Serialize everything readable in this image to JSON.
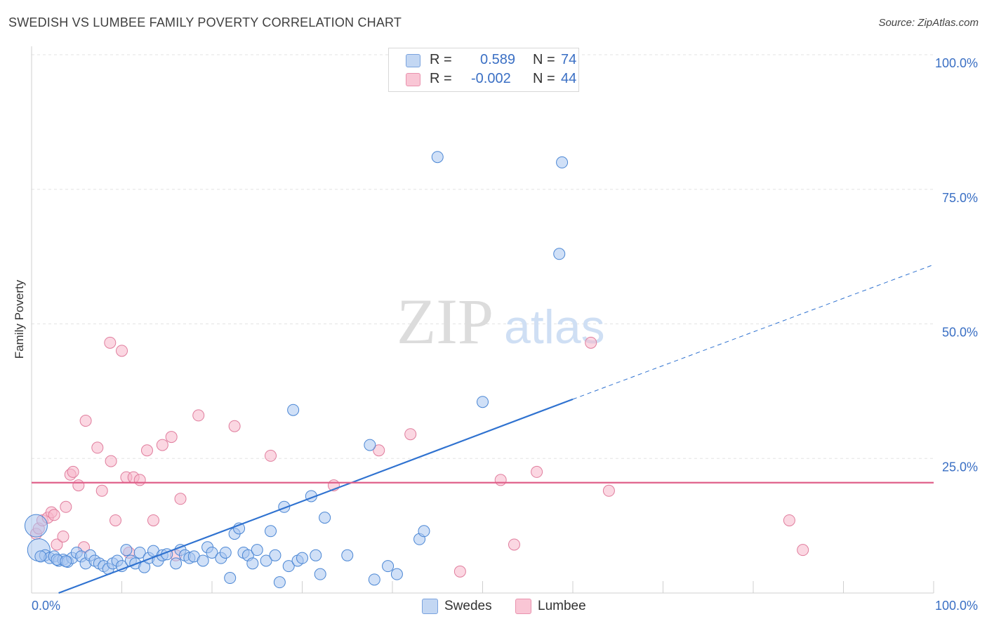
{
  "header": {
    "title": "SWEDISH VS LUMBEE FAMILY POVERTY CORRELATION CHART",
    "source": "Source: ZipAtlas.com"
  },
  "watermark": {
    "zip": "ZIP",
    "atlas": "atlas"
  },
  "legend": {
    "r_label": "R =",
    "n_label": "N =",
    "swedes": {
      "r": "0.589",
      "n": "74",
      "color": "#a9c6f0"
    },
    "lumbee": {
      "r": "-0.002",
      "n": "44",
      "color": "#f7b6cb"
    }
  },
  "bottom_legend": {
    "swedes": "Swedes",
    "lumbee": "Lumbee"
  },
  "colors": {
    "blue": "#2f72d0",
    "pink": "#e0608a",
    "axis_text": "#3a6fc4"
  },
  "chart_data": {
    "type": "scatter",
    "title": "SWEDISH VS LUMBEE FAMILY POVERTY CORRELATION CHART",
    "xlabel": "",
    "ylabel": "Family Poverty",
    "xlim": [
      0,
      100
    ],
    "ylim": [
      0,
      100
    ],
    "x_tick_labels": [
      "0.0%",
      "100.0%"
    ],
    "y_tick_labels": [
      "25.0%",
      "50.0%",
      "75.0%",
      "100.0%"
    ],
    "y_ticks": [
      25,
      50,
      75,
      100
    ],
    "grid": true,
    "series": [
      {
        "name": "Swedes",
        "color": "#a9c6f0",
        "stroke": "#4a86d4",
        "trend": {
          "x0": 3,
          "y0": 0,
          "x1": 60,
          "y1": 36,
          "dash_to_x": 100,
          "dash_to_y": 61
        },
        "points": [
          [
            0.5,
            12.5
          ],
          [
            0.8,
            8.0
          ],
          [
            1.5,
            7.0
          ],
          [
            2.0,
            6.5
          ],
          [
            2.5,
            6.8
          ],
          [
            3.0,
            6.0
          ],
          [
            3.5,
            6.2
          ],
          [
            4.0,
            5.8
          ],
          [
            4.5,
            6.5
          ],
          [
            5.0,
            7.5
          ],
          [
            5.5,
            6.8
          ],
          [
            6.0,
            5.5
          ],
          [
            6.5,
            7.0
          ],
          [
            7.0,
            6.0
          ],
          [
            7.5,
            5.5
          ],
          [
            8.0,
            5.0
          ],
          [
            8.5,
            4.5
          ],
          [
            9.0,
            5.5
          ],
          [
            9.5,
            6.0
          ],
          [
            10.0,
            5.0
          ],
          [
            10.5,
            8.0
          ],
          [
            11.0,
            6.0
          ],
          [
            11.5,
            5.5
          ],
          [
            12.0,
            7.5
          ],
          [
            12.5,
            4.8
          ],
          [
            13.0,
            6.5
          ],
          [
            13.5,
            7.8
          ],
          [
            14.0,
            6.0
          ],
          [
            14.5,
            7.0
          ],
          [
            15.0,
            7.2
          ],
          [
            16.0,
            5.5
          ],
          [
            16.5,
            8.0
          ],
          [
            17.0,
            7.0
          ],
          [
            17.5,
            6.5
          ],
          [
            18.0,
            6.8
          ],
          [
            19.0,
            6.0
          ],
          [
            19.5,
            8.5
          ],
          [
            20.0,
            7.5
          ],
          [
            21.0,
            6.5
          ],
          [
            21.5,
            7.5
          ],
          [
            22.0,
            2.8
          ],
          [
            22.5,
            11.0
          ],
          [
            23.0,
            12.0
          ],
          [
            23.5,
            7.5
          ],
          [
            24.0,
            7.0
          ],
          [
            24.5,
            5.5
          ],
          [
            25.0,
            8.0
          ],
          [
            26.0,
            6.0
          ],
          [
            26.5,
            11.5
          ],
          [
            27.0,
            7.0
          ],
          [
            27.5,
            2.0
          ],
          [
            28.0,
            16.0
          ],
          [
            28.5,
            5.0
          ],
          [
            29.0,
            34.0
          ],
          [
            29.5,
            6.0
          ],
          [
            30.0,
            6.5
          ],
          [
            31.0,
            18.0
          ],
          [
            31.5,
            7.0
          ],
          [
            32.0,
            3.5
          ],
          [
            32.5,
            14.0
          ],
          [
            35.0,
            7.0
          ],
          [
            37.5,
            27.5
          ],
          [
            38.0,
            2.5
          ],
          [
            39.5,
            5.0
          ],
          [
            40.5,
            3.5
          ],
          [
            43.0,
            10.0
          ],
          [
            43.5,
            11.5
          ],
          [
            45.0,
            81.0
          ],
          [
            50.0,
            35.5
          ],
          [
            58.5,
            63.0
          ],
          [
            58.8,
            80.0
          ],
          [
            1.0,
            6.8
          ],
          [
            2.8,
            6.2
          ],
          [
            3.8,
            5.9
          ]
        ]
      },
      {
        "name": "Lumbee",
        "color": "#f7b6cb",
        "stroke": "#e07d9d",
        "trend": {
          "x0": 0,
          "y0": 20.5,
          "x1": 100,
          "y1": 20.5
        },
        "points": [
          [
            0.5,
            11.0
          ],
          [
            0.8,
            12.0
          ],
          [
            1.2,
            13.5
          ],
          [
            1.8,
            14.0
          ],
          [
            2.2,
            15.0
          ],
          [
            2.8,
            9.0
          ],
          [
            3.5,
            10.5
          ],
          [
            3.8,
            16.0
          ],
          [
            4.3,
            22.0
          ],
          [
            4.6,
            22.5
          ],
          [
            5.2,
            20.0
          ],
          [
            5.8,
            8.5
          ],
          [
            6.0,
            32.0
          ],
          [
            7.3,
            27.0
          ],
          [
            7.8,
            19.0
          ],
          [
            8.7,
            46.5
          ],
          [
            8.8,
            24.5
          ],
          [
            9.3,
            13.5
          ],
          [
            10.0,
            45.0
          ],
          [
            10.5,
            21.5
          ],
          [
            10.8,
            7.5
          ],
          [
            11.3,
            21.5
          ],
          [
            12.0,
            21.0
          ],
          [
            12.8,
            26.5
          ],
          [
            13.5,
            13.5
          ],
          [
            14.5,
            27.5
          ],
          [
            15.5,
            29.0
          ],
          [
            16.0,
            7.0
          ],
          [
            16.5,
            17.5
          ],
          [
            18.5,
            33.0
          ],
          [
            22.5,
            31.0
          ],
          [
            26.5,
            25.5
          ],
          [
            33.5,
            20.0
          ],
          [
            38.5,
            26.5
          ],
          [
            42.0,
            29.5
          ],
          [
            47.5,
            4.0
          ],
          [
            52.0,
            21.0
          ],
          [
            53.5,
            9.0
          ],
          [
            56.0,
            22.5
          ],
          [
            62.0,
            46.5
          ],
          [
            64.0,
            19.0
          ],
          [
            84.0,
            13.5
          ],
          [
            85.5,
            8.0
          ],
          [
            2.5,
            14.5
          ]
        ]
      }
    ]
  }
}
